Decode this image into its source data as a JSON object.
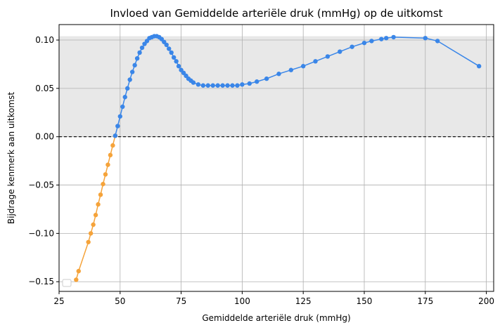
{
  "chart_data": {
    "type": "line",
    "title": "Invloed van Gemiddelde arteriële druk (mmHg) op de uitkomst",
    "xlabel": "Gemiddelde arteriële druk (mmHg)",
    "ylabel": "Bijdrage kenmerk aan uitkomst",
    "xlim": [
      25,
      203
    ],
    "ylim": [
      -0.16,
      0.116
    ],
    "xticks": [
      25,
      50,
      75,
      100,
      125,
      150,
      175,
      200
    ],
    "yticks": [
      -0.15,
      -0.1,
      -0.05,
      0.0,
      0.05,
      0.1
    ],
    "xtick_labels": [
      "25",
      "50",
      "75",
      "100",
      "125",
      "150",
      "175",
      "200"
    ],
    "ytick_labels": [
      "−0.15",
      "−0.10",
      "−0.05",
      "0.00",
      "0.05",
      "0.10"
    ],
    "grid": true,
    "shaded_band": {
      "y_from": 0.0,
      "y_to": 0.104,
      "color": "#e8e8e8"
    },
    "reference_line": {
      "y": 0.0,
      "style": "dashed",
      "color": "#000000"
    },
    "legend": {
      "placement": "bottom-left",
      "entries": []
    },
    "series": [
      {
        "color": "#f5a33a",
        "x": [
          32,
          33,
          37,
          38,
          39,
          40,
          41,
          42,
          43,
          44,
          45,
          46,
          47,
          48
        ],
        "y": [
          -0.148,
          -0.139,
          -0.109,
          -0.1,
          -0.091,
          -0.081,
          -0.07,
          -0.06,
          -0.049,
          -0.039,
          -0.029,
          -0.019,
          -0.009,
          0.001
        ]
      },
      {
        "color": "#3a86e8",
        "x": [
          48,
          49,
          50,
          51,
          52,
          53,
          54,
          55,
          56,
          57,
          58,
          59,
          60,
          61,
          62,
          63,
          64,
          65,
          66,
          67,
          68,
          69,
          70,
          71,
          72,
          73,
          74,
          75,
          76,
          77,
          78,
          79,
          80,
          82,
          84,
          86,
          88,
          90,
          92,
          94,
          96,
          98,
          100,
          103,
          106,
          110,
          115,
          120,
          125,
          130,
          135,
          140,
          145,
          150,
          153,
          157,
          159,
          162,
          175,
          180,
          197
        ],
        "y": [
          0.001,
          0.011,
          0.021,
          0.031,
          0.041,
          0.05,
          0.059,
          0.067,
          0.074,
          0.081,
          0.087,
          0.092,
          0.096,
          0.099,
          0.102,
          0.103,
          0.104,
          0.104,
          0.103,
          0.101,
          0.098,
          0.095,
          0.091,
          0.087,
          0.082,
          0.078,
          0.073,
          0.069,
          0.066,
          0.063,
          0.06,
          0.058,
          0.056,
          0.054,
          0.053,
          0.053,
          0.053,
          0.053,
          0.053,
          0.053,
          0.053,
          0.053,
          0.054,
          0.055,
          0.057,
          0.06,
          0.065,
          0.069,
          0.073,
          0.078,
          0.083,
          0.088,
          0.093,
          0.097,
          0.099,
          0.101,
          0.102,
          0.103,
          0.102,
          0.099,
          0.073
        ]
      }
    ]
  }
}
